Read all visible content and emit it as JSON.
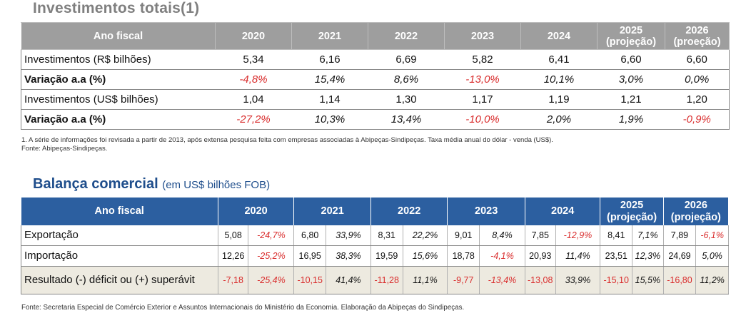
{
  "section1": {
    "title": "Investimentos totais(1)",
    "header": {
      "label": "Ano fiscal",
      "years": [
        "2020",
        "2021",
        "2022",
        "2023",
        "2024",
        "2025\n(projeção)",
        "2026\n(proeção)"
      ]
    },
    "rows": [
      {
        "label": "Investimentos (R$ bilhões)",
        "values": [
          "5,34",
          "6,16",
          "6,69",
          "5,82",
          "6,41",
          "6,60",
          "6,60"
        ]
      },
      {
        "label": "Variação a.a (%)",
        "values": [
          "-4,8%",
          "15,4%",
          "8,6%",
          "-13,0%",
          "10,1%",
          "3,0%",
          "0,0%"
        ]
      },
      {
        "label": "Investimentos (US$ bilhões)",
        "values": [
          "1,04",
          "1,14",
          "1,30",
          "1,17",
          "1,19",
          "1,21",
          "1,20"
        ]
      },
      {
        "label": "Variação a.a (%)",
        "values": [
          "-27,2%",
          "10,3%",
          "13,4%",
          "-10,0%",
          "2,0%",
          "1,9%",
          "-0,9%"
        ]
      }
    ],
    "footnote": "1. A série de informações foi revisada a partir de 2013, após extensa pesquisa feita com empresas associadas à Abipeças-Sindipeças. Taxa média anual do dólar - venda (US$).",
    "source": "Fonte: Abipeças-Sindipeças."
  },
  "section2": {
    "title": "Balança comercial",
    "subtitle": "(em US$ bilhões FOB)",
    "header": {
      "label": "Ano fiscal",
      "years": [
        "2020",
        "2021",
        "2022",
        "2023",
        "2024",
        "2025\n(projeção)",
        "2026\n(projeção)"
      ]
    },
    "rows": [
      {
        "label": "Exportação",
        "values": [
          "5,08",
          "-24,7%",
          "6,80",
          "33,9%",
          "8,31",
          "22,2%",
          "9,01",
          "8,4%",
          "7,85",
          "-12,9%",
          "8,41",
          "7,1%",
          "7,89",
          "-6,1%"
        ]
      },
      {
        "label": "Importação",
        "values": [
          "12,26",
          "-25,2%",
          "16,95",
          "38,3%",
          "19,59",
          "15,6%",
          "18,78",
          "-4,1%",
          "20,93",
          "11,4%",
          "23,51",
          "12,3%",
          "24,69",
          "5,0%"
        ]
      },
      {
        "label": "Resultado (-) déficit ou (+) superávit",
        "values": [
          "-7,18",
          "-25,4%",
          "-10,15",
          "41,4%",
          "-11,28",
          "11,1%",
          "-9,77",
          "-13,4%",
          "-13,08",
          "33,9%",
          "-15,10",
          "15,5%",
          "-16,80",
          "11,2%"
        ]
      }
    ],
    "source": "Fonte: Secretaria Especial de Comércio Exterior e Assuntos Internacionais do Ministério da Economia. Elaboração da Abipeças do Sindipeças."
  },
  "colors": {
    "negative": "#d92d2d",
    "header1": "#9e9e9e",
    "header2": "#2c5fa0",
    "resultRow": "#edeae0"
  }
}
